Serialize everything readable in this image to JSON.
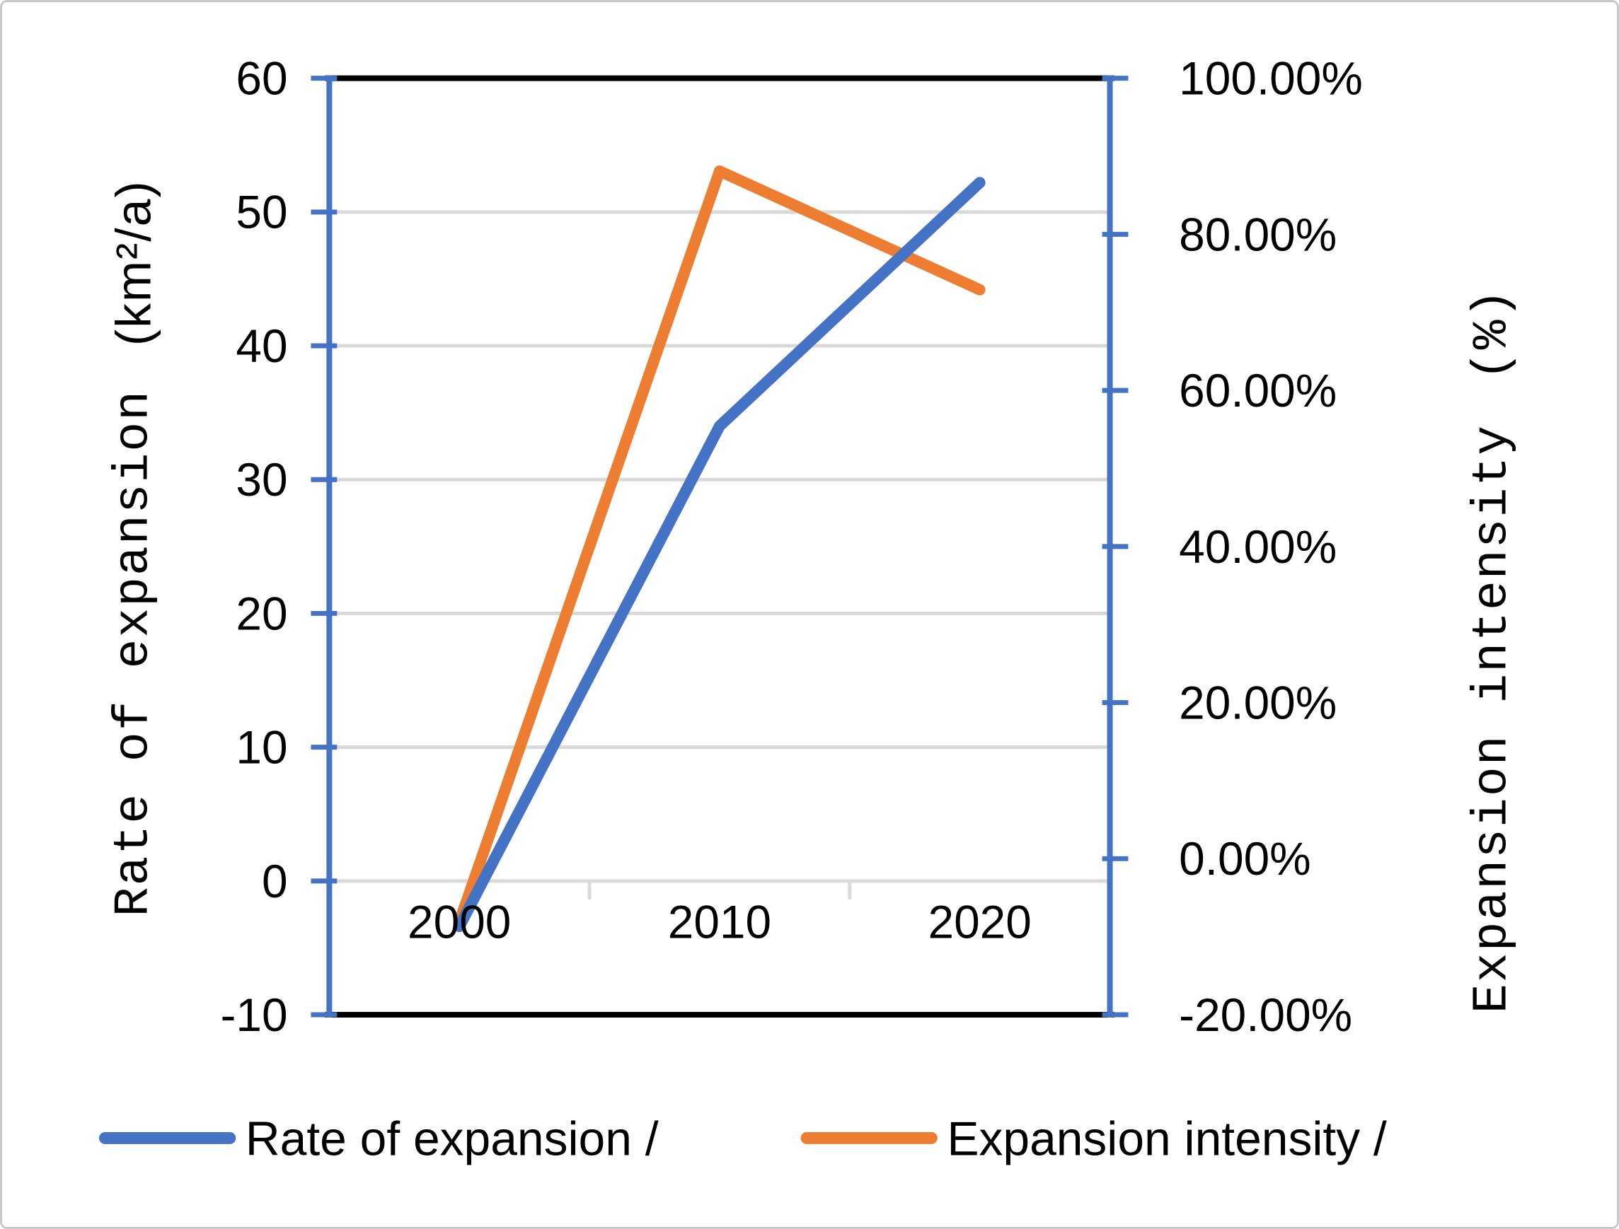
{
  "chart_data": {
    "type": "line",
    "categories": [
      "2000",
      "2010",
      "2020"
    ],
    "series": [
      {
        "name": "Expansion intensity /",
        "axis": "right",
        "color": "#ED7D31",
        "unit": "%",
        "values": [
          -8.1,
          88.1,
          72.9
        ]
      },
      {
        "name": "Rate of expansion /",
        "axis": "left",
        "color": "#4472C4",
        "unit": "km²/a",
        "values": [
          -3.4,
          34.0,
          52.2
        ]
      }
    ],
    "left_axis": {
      "title_main": "Rate of expansion",
      "title_unit": "(km²/a)",
      "min": -10,
      "max": 60,
      "step": 10,
      "ticks": [
        60,
        50,
        40,
        30,
        20,
        10,
        0,
        -10
      ],
      "tick_labels": [
        "60",
        "50",
        "40",
        "30",
        "20",
        "10",
        "0",
        "-10"
      ]
    },
    "right_axis": {
      "title_main": "Expansion intensity",
      "title_unit": "(%)",
      "min": -20,
      "max": 100,
      "step": 20,
      "ticks": [
        100,
        80,
        60,
        40,
        20,
        0,
        -20
      ],
      "tick_labels": [
        "100.00%",
        "80.00%",
        "60.00%",
        "40.00%",
        "20.00%",
        "0.00%",
        "-20.00%"
      ]
    },
    "x_axis": {
      "tick_labels": [
        "2000",
        "2010",
        "2020"
      ]
    },
    "legend": [
      {
        "label": "Rate of expansion /",
        "color": "#4472C4"
      },
      {
        "label": "Expansion intensity /",
        "color": "#ED7D31"
      }
    ],
    "colors": {
      "gridline": "#D9D9D9",
      "axis_line_blue": "#4472C4",
      "plot_border_black": "#000000",
      "text": "#000000",
      "background": "#FFFFFF"
    },
    "layout": {
      "legend_position": "bottom",
      "grid": "horizontal",
      "line_width": 16
    }
  }
}
